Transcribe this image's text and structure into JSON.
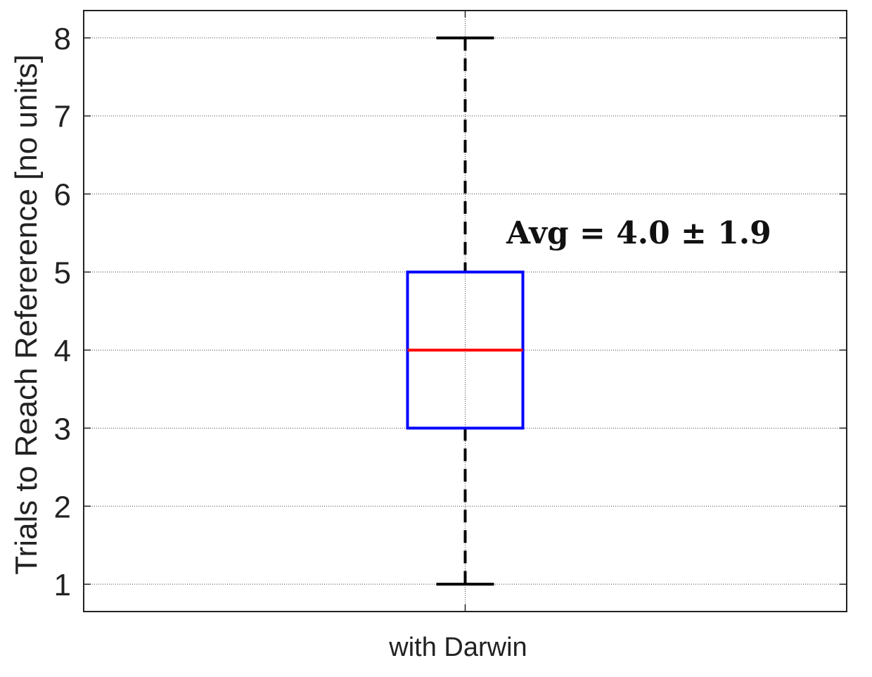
{
  "chart_data": {
    "type": "box",
    "categories": [
      "with Darwin"
    ],
    "boxes": [
      {
        "category": "with Darwin",
        "whisker_low": 1,
        "q1": 3,
        "median": 4,
        "q3": 5,
        "whisker_high": 8
      }
    ],
    "title": "",
    "xlabel": "",
    "ylabel": "Trials to Reach Refererence [no units]",
    "ylim": [
      0.65,
      8.35
    ],
    "yticks": [
      1,
      2,
      3,
      4,
      5,
      6,
      7,
      8
    ],
    "grid": true,
    "annotation": "Avg = 4.0 ± 1.9",
    "colors": {
      "box": "#0000ff",
      "median": "#ff0000",
      "whisker": "#000000",
      "grid": "#444444",
      "axes": "#222222"
    }
  }
}
